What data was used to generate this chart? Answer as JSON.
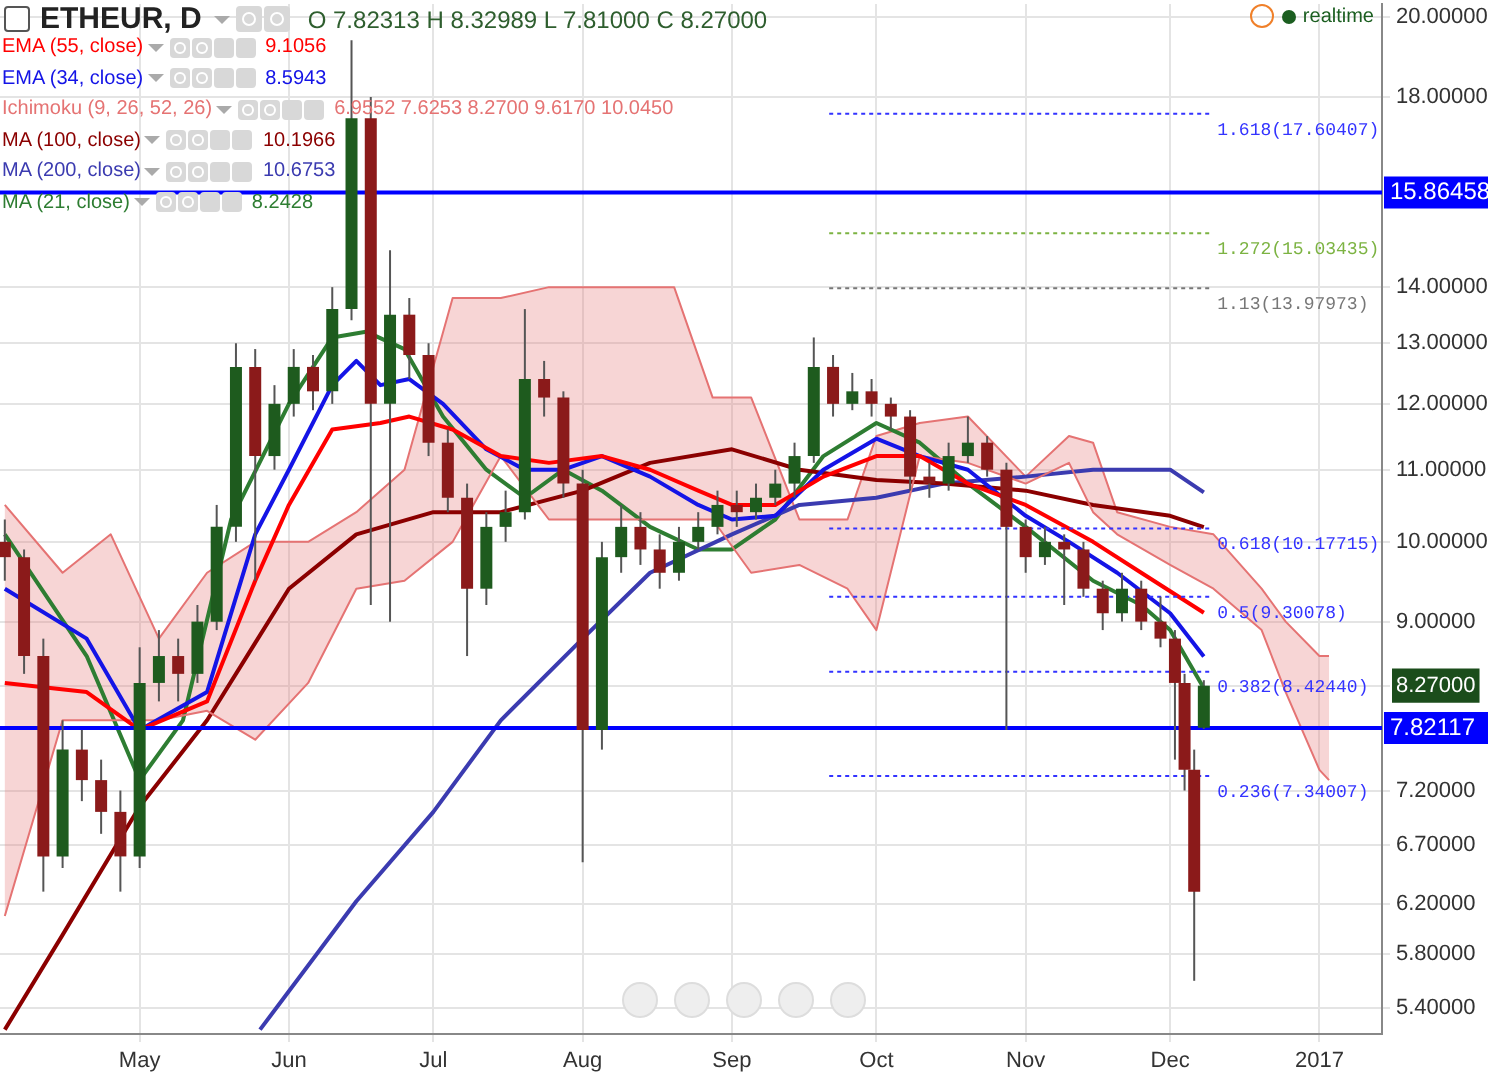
{
  "chart_data": {
    "type": "candlestick",
    "title": "ETHEUR, D",
    "annotations": [
      "O 7.82313 H 8.32989 L 7.81000 C 8.27000",
      "9.1056",
      "8.5943",
      "6.9552 7.6253 8.2700 9.6170 10.0450",
      "10.1966",
      "10.6753",
      "8.2428",
      "realtime"
    ],
    "x": [
      "2016-04-03",
      "2016-04-07",
      "2016-04-11",
      "2016-04-15",
      "2016-04-19",
      "2016-04-23",
      "2016-04-27",
      "2016-05-01",
      "2016-05-05",
      "2016-05-09",
      "2016-05-13",
      "2016-05-17",
      "2016-05-21",
      "2016-05-25",
      "2016-05-29",
      "2016-06-02",
      "2016-06-06",
      "2016-06-10",
      "2016-06-14",
      "2016-06-18",
      "2016-06-22",
      "2016-06-26",
      "2016-06-30",
      "2016-07-04",
      "2016-07-08",
      "2016-07-12",
      "2016-07-16",
      "2016-07-20",
      "2016-07-24",
      "2016-07-28",
      "2016-08-01",
      "2016-08-05",
      "2016-08-09",
      "2016-08-13",
      "2016-08-17",
      "2016-08-21",
      "2016-08-25",
      "2016-08-29",
      "2016-09-02",
      "2016-09-06",
      "2016-09-10",
      "2016-09-14",
      "2016-09-18",
      "2016-09-22",
      "2016-09-26",
      "2016-09-30",
      "2016-10-04",
      "2016-10-08",
      "2016-10-12",
      "2016-10-16",
      "2016-10-20",
      "2016-10-24",
      "2016-10-28",
      "2016-11-01",
      "2016-11-05",
      "2016-11-09",
      "2016-11-13",
      "2016-11-17",
      "2016-11-21",
      "2016-11-25",
      "2016-11-29",
      "2016-12-02",
      "2016-12-04",
      "2016-12-06",
      "2016-12-08"
    ],
    "ohlc": [
      [
        10.0,
        10.3,
        9.5,
        9.8
      ],
      [
        9.8,
        9.9,
        8.4,
        8.6
      ],
      [
        8.6,
        8.8,
        6.3,
        6.6
      ],
      [
        6.6,
        7.9,
        6.5,
        7.6
      ],
      [
        7.6,
        7.8,
        7.1,
        7.3
      ],
      [
        7.3,
        7.5,
        6.8,
        7.0
      ],
      [
        7.0,
        7.2,
        6.3,
        6.6
      ],
      [
        6.6,
        8.7,
        6.5,
        8.3
      ],
      [
        8.3,
        8.9,
        8.1,
        8.6
      ],
      [
        8.6,
        8.8,
        8.1,
        8.4
      ],
      [
        8.4,
        9.2,
        8.3,
        9.0
      ],
      [
        9.0,
        10.5,
        8.9,
        10.2
      ],
      [
        10.2,
        13.0,
        10.0,
        12.6
      ],
      [
        12.6,
        12.9,
        9.5,
        11.2
      ],
      [
        11.2,
        12.3,
        11.0,
        12.0
      ],
      [
        12.0,
        12.9,
        11.8,
        12.6
      ],
      [
        12.6,
        12.8,
        11.9,
        12.2
      ],
      [
        12.2,
        14.0,
        12.0,
        13.6
      ],
      [
        13.6,
        19.4,
        13.4,
        17.5
      ],
      [
        17.5,
        18.0,
        9.2,
        12.0
      ],
      [
        12.0,
        14.7,
        9.0,
        13.5
      ],
      [
        13.5,
        13.8,
        12.4,
        12.8
      ],
      [
        12.8,
        13.0,
        11.2,
        11.4
      ],
      [
        11.4,
        11.6,
        10.4,
        10.6
      ],
      [
        10.6,
        10.8,
        8.6,
        9.4
      ],
      [
        9.4,
        10.4,
        9.2,
        10.2
      ],
      [
        10.2,
        10.7,
        10.0,
        10.4
      ],
      [
        10.4,
        13.6,
        10.3,
        12.4
      ],
      [
        12.4,
        12.7,
        11.8,
        12.1
      ],
      [
        12.1,
        12.2,
        10.6,
        10.8
      ],
      [
        10.8,
        11.0,
        6.55,
        7.8
      ],
      [
        7.8,
        10.0,
        7.6,
        9.8
      ],
      [
        9.8,
        10.5,
        9.6,
        10.2
      ],
      [
        10.2,
        10.4,
        9.7,
        9.9
      ],
      [
        9.9,
        10.1,
        9.4,
        9.6
      ],
      [
        9.6,
        10.2,
        9.5,
        10.0
      ],
      [
        10.0,
        10.4,
        9.9,
        10.2
      ],
      [
        10.2,
        10.7,
        10.1,
        10.5
      ],
      [
        10.5,
        10.7,
        10.2,
        10.4
      ],
      [
        10.4,
        10.8,
        10.3,
        10.6
      ],
      [
        10.6,
        11.0,
        10.5,
        10.8
      ],
      [
        10.8,
        11.4,
        10.6,
        11.2
      ],
      [
        11.2,
        13.1,
        11.1,
        12.6
      ],
      [
        12.6,
        12.8,
        11.8,
        12.0
      ],
      [
        12.0,
        12.5,
        11.9,
        12.2
      ],
      [
        12.2,
        12.4,
        11.8,
        12.0
      ],
      [
        12.0,
        12.1,
        11.6,
        11.8
      ],
      [
        11.8,
        11.9,
        10.7,
        10.9
      ],
      [
        10.9,
        11.1,
        10.6,
        10.8
      ],
      [
        10.8,
        11.4,
        10.7,
        11.2
      ],
      [
        11.2,
        11.8,
        11.1,
        11.4
      ],
      [
        11.4,
        11.5,
        10.9,
        11.0
      ],
      [
        11.0,
        11.1,
        7.8,
        10.2
      ],
      [
        10.2,
        10.3,
        9.6,
        9.8
      ],
      [
        9.8,
        10.2,
        9.7,
        10.0
      ],
      [
        10.0,
        10.1,
        9.2,
        9.9
      ],
      [
        9.9,
        10.0,
        9.3,
        9.4
      ],
      [
        9.4,
        9.5,
        8.9,
        9.1
      ],
      [
        9.1,
        9.6,
        9.0,
        9.4
      ],
      [
        9.4,
        9.5,
        8.9,
        9.0
      ],
      [
        9.0,
        9.3,
        8.7,
        8.8
      ],
      [
        8.8,
        8.9,
        7.5,
        8.3
      ],
      [
        8.3,
        8.4,
        7.2,
        7.4
      ],
      [
        7.4,
        7.6,
        5.6,
        6.3
      ],
      [
        7.82313,
        8.32989,
        7.81,
        8.27
      ]
    ],
    "series": [
      {
        "name": "EMA (55, close)",
        "type": "line",
        "color": "#ff0000",
        "x": [
          "2016-04-03",
          "2016-04-20",
          "2016-05-01",
          "2016-05-15",
          "2016-05-25",
          "2016-06-01",
          "2016-06-10",
          "2016-06-20",
          "2016-06-26",
          "2016-07-05",
          "2016-07-15",
          "2016-07-25",
          "2016-08-05",
          "2016-08-15",
          "2016-08-25",
          "2016-09-01",
          "2016-09-10",
          "2016-09-20",
          "2016-10-01",
          "2016-10-10",
          "2016-10-20",
          "2016-11-01",
          "2016-11-15",
          "2016-11-25",
          "2016-12-08"
        ],
        "values": [
          8.3,
          8.2,
          7.8,
          8.1,
          9.5,
          10.5,
          11.6,
          11.7,
          11.8,
          11.6,
          11.2,
          11.1,
          11.2,
          11.0,
          10.7,
          10.5,
          10.5,
          10.9,
          11.2,
          11.2,
          10.8,
          10.5,
          10.0,
          9.6,
          9.1056
        ]
      },
      {
        "name": "EMA (34, close)",
        "type": "line",
        "color": "#1414e6",
        "x": [
          "2016-04-03",
          "2016-04-20",
          "2016-05-01",
          "2016-05-15",
          "2016-05-25",
          "2016-06-01",
          "2016-06-10",
          "2016-06-15",
          "2016-06-20",
          "2016-06-26",
          "2016-07-03",
          "2016-07-12",
          "2016-07-20",
          "2016-07-28",
          "2016-08-05",
          "2016-08-15",
          "2016-08-25",
          "2016-09-01",
          "2016-09-10",
          "2016-09-20",
          "2016-10-01",
          "2016-10-10",
          "2016-10-20",
          "2016-11-01",
          "2016-11-10",
          "2016-11-20",
          "2016-12-01",
          "2016-12-08"
        ],
        "values": [
          9.4,
          8.8,
          7.8,
          8.2,
          10.1,
          11.0,
          12.3,
          12.7,
          12.3,
          12.4,
          12.0,
          11.3,
          11.0,
          11.0,
          11.2,
          10.9,
          10.5,
          10.3,
          10.35,
          11.0,
          11.46,
          11.2,
          11.0,
          10.35,
          10.0,
          9.6,
          9.1,
          8.5943
        ]
      },
      {
        "name": "Ichimoku (9, 26, 52, 26)",
        "type": "area",
        "color": "#e57373",
        "x": [
          "2016-04-03",
          "2016-04-15",
          "2016-04-25",
          "2016-05-05",
          "2016-05-15",
          "2016-05-25",
          "2016-06-05",
          "2016-06-15",
          "2016-06-25",
          "2016-07-05",
          "2016-07-15",
          "2016-07-25",
          "2016-08-05",
          "2016-08-20",
          "2016-08-28",
          "2016-09-05",
          "2016-09-15",
          "2016-09-25",
          "2016-10-01",
          "2016-10-10",
          "2016-10-20",
          "2016-11-01",
          "2016-11-10",
          "2016-11-15",
          "2016-11-20",
          "2016-12-01",
          "2016-12-10",
          "2016-12-20",
          "2016-12-25",
          "2017-01-01",
          "2017-01-03"
        ],
        "values": [
          10.5,
          9.6,
          10.1,
          8.8,
          9.6,
          10.0,
          10.0,
          10.4,
          11.0,
          13.8,
          13.8,
          14.0,
          14.0,
          14.0,
          12.1,
          12.1,
          10.3,
          10.3,
          11.5,
          11.7,
          11.8,
          10.9,
          11.5,
          11.4,
          10.4,
          10.2,
          10.1,
          9.4,
          9.0,
          8.6,
          8.6
        ]
      },
      {
        "type": "line",
        "color": "#e57373",
        "x": [
          "2016-04-03",
          "2016-04-15",
          "2016-04-25",
          "2016-05-05",
          "2016-05-15",
          "2016-05-25",
          "2016-06-05",
          "2016-06-15",
          "2016-06-25",
          "2016-07-05",
          "2016-07-15",
          "2016-07-25",
          "2016-08-05",
          "2016-08-20",
          "2016-08-28",
          "2016-09-05",
          "2016-09-15",
          "2016-09-25",
          "2016-10-01",
          "2016-10-10",
          "2016-10-20",
          "2016-11-01",
          "2016-11-10",
          "2016-11-15",
          "2016-11-20",
          "2016-12-01",
          "2016-12-10",
          "2016-12-20",
          "2016-12-25",
          "2017-01-01",
          "2017-01-03"
        ],
        "values": [
          6.1,
          7.9,
          7.9,
          7.9,
          8.0,
          7.7,
          8.3,
          9.4,
          9.5,
          10.0,
          11.2,
          10.3,
          10.3,
          10.3,
          10.3,
          9.6,
          9.7,
          9.4,
          8.9,
          11.2,
          11.1,
          10.8,
          11.1,
          10.4,
          10.1,
          9.7,
          9.4,
          8.9,
          8.2,
          7.4,
          7.3
        ]
      },
      {
        "name": "MA (100, close)",
        "type": "line",
        "color": "#8b0000",
        "x": [
          "2016-04-03",
          "2016-04-15",
          "2016-05-01",
          "2016-05-15",
          "2016-06-01",
          "2016-06-15",
          "2016-07-01",
          "2016-07-15",
          "2016-08-01",
          "2016-08-15",
          "2016-09-01",
          "2016-09-15",
          "2016-10-01",
          "2016-10-15",
          "2016-11-01",
          "2016-11-15",
          "2016-12-01",
          "2016-12-08"
        ],
        "values": [
          5.25,
          5.95,
          7.05,
          7.9,
          9.4,
          10.1,
          10.4,
          10.4,
          10.7,
          11.1,
          11.3,
          11.0,
          10.85,
          10.8,
          10.7,
          10.5,
          10.35,
          10.1966
        ]
      },
      {
        "name": "MA (200, close)",
        "type": "line",
        "color": "#3b3bb0",
        "x": [
          "2016-05-26",
          "2016-06-15",
          "2016-07-01",
          "2016-07-15",
          "2016-08-01",
          "2016-08-15",
          "2016-09-01",
          "2016-09-15",
          "2016-10-01",
          "2016-10-15",
          "2016-11-01",
          "2016-11-15",
          "2016-12-01",
          "2016-12-08"
        ],
        "values": [
          5.25,
          6.22,
          7.0,
          7.9,
          8.8,
          9.6,
          10.1,
          10.5,
          10.6,
          10.8,
          10.9,
          11.0,
          11.0,
          10.6753
        ]
      },
      {
        "name": "MA (21, close)",
        "type": "line",
        "color": "#2e7d32",
        "x": [
          "2016-04-03",
          "2016-04-20",
          "2016-05-01",
          "2016-05-10",
          "2016-05-20",
          "2016-06-01",
          "2016-06-10",
          "2016-06-17",
          "2016-06-25",
          "2016-07-03",
          "2016-07-12",
          "2016-07-20",
          "2016-07-28",
          "2016-08-05",
          "2016-08-15",
          "2016-08-25",
          "2016-09-01",
          "2016-09-10",
          "2016-09-20",
          "2016-10-01",
          "2016-10-10",
          "2016-10-20",
          "2016-11-01",
          "2016-11-15",
          "2016-11-25",
          "2016-12-01",
          "2016-12-08"
        ],
        "values": [
          10.1,
          8.6,
          7.3,
          7.9,
          10.3,
          12.0,
          13.1,
          13.2,
          12.9,
          11.8,
          11.0,
          10.6,
          11.0,
          10.7,
          10.2,
          9.9,
          9.9,
          10.3,
          11.2,
          11.7,
          11.4,
          10.8,
          10.2,
          9.5,
          9.2,
          8.9,
          8.2428
        ]
      }
    ],
    "ref_lines": [
      {
        "axis": "y",
        "value": 17.60407,
        "label": "1.618(17.60407)",
        "color": "#3333ff",
        "line_style": "dotted"
      },
      {
        "axis": "y",
        "value": 15.03435,
        "label": "1.272(15.03435)",
        "color": "#7cb342",
        "line_style": "dotted"
      },
      {
        "axis": "y",
        "value": 13.97973,
        "label": "1.13(13.97973)",
        "color": "#777777",
        "line_style": "dotted"
      },
      {
        "axis": "y",
        "value": 10.17715,
        "label": "0.618(10.17715)",
        "color": "#3333ff",
        "line_style": "dotted"
      },
      {
        "axis": "y",
        "value": 9.30078,
        "label": "0.5(9.30078)",
        "color": "#3333ff",
        "line_style": "dotted"
      },
      {
        "axis": "y",
        "value": 8.4244,
        "label": "0.382(8.42440)",
        "color": "#3333ff",
        "line_style": "dotted"
      },
      {
        "axis": "y",
        "value": 7.34007,
        "label": "0.236(7.34007)",
        "color": "#3333ff",
        "line_style": "dotted"
      },
      {
        "axis": "y",
        "value": 15.86458,
        "label": "15.86458",
        "color": "#0000ff",
        "line_style": "solid"
      },
      {
        "axis": "y",
        "value": 7.82117,
        "label": "7.82117",
        "color": "#0000ff",
        "line_style": "solid"
      }
    ],
    "xlim": [
      "2016-04-02",
      "2017-01-14"
    ],
    "xticks": [
      {
        "value": "2016-05-01",
        "label": "May"
      },
      {
        "value": "2016-06-01",
        "label": "Jun"
      },
      {
        "value": "2016-07-01",
        "label": "Jul"
      },
      {
        "value": "2016-08-01",
        "label": "Aug"
      },
      {
        "value": "2016-09-01",
        "label": "Sep"
      },
      {
        "value": "2016-10-01",
        "label": "Oct"
      },
      {
        "value": "2016-11-01",
        "label": "Nov"
      },
      {
        "value": "2016-12-01",
        "label": "Dec"
      },
      {
        "value": "2017-01-01",
        "label": "2017"
      }
    ],
    "log": "y",
    "ylim": [
      5.22,
      20.35
    ],
    "yticks": [
      {
        "value": 5.4,
        "label": "5.40000"
      },
      {
        "value": 5.8,
        "label": "5.80000"
      },
      {
        "value": 6.2,
        "label": "6.20000"
      },
      {
        "value": 6.7,
        "label": "6.70000"
      },
      {
        "value": 7.2,
        "label": "7.20000"
      },
      {
        "value": 8.27,
        "label": "8.27000"
      },
      {
        "value": 9,
        "label": "9.00000"
      },
      {
        "value": 10,
        "label": "10.00000"
      },
      {
        "value": 11,
        "label": "11.00000"
      },
      {
        "value": 12,
        "label": "12.00000"
      },
      {
        "value": 13,
        "label": "13.00000"
      },
      {
        "value": 14,
        "label": "14.00000"
      },
      {
        "value": 18,
        "label": "18.00000"
      },
      {
        "value": 20,
        "label": "20.00000"
      }
    ],
    "grid": true,
    "legend": "top left",
    "marker": "none",
    "line_style": "solid"
  }
}
